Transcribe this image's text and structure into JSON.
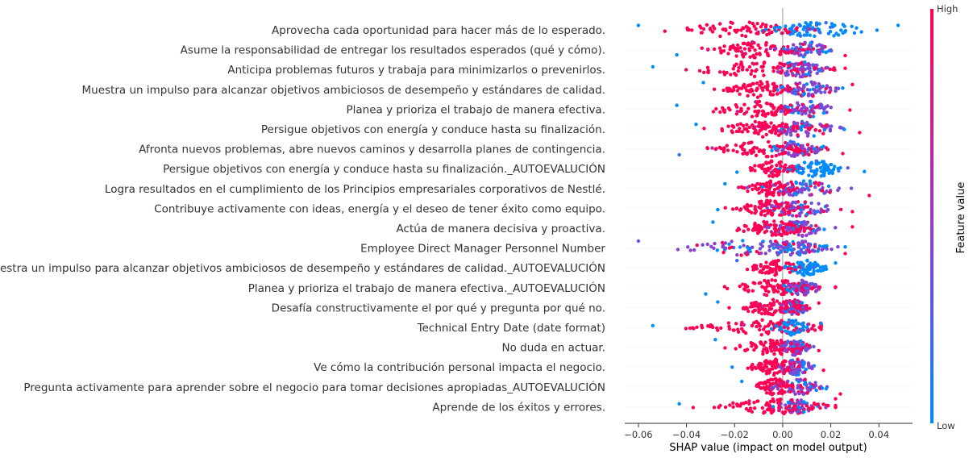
{
  "chart_data": {
    "type": "scatter",
    "subtype": "shap-beeswarm",
    "xlabel": "SHAP value (impact on model output)",
    "xlim": [
      -0.065,
      0.054
    ],
    "xticks": [
      -0.06,
      -0.04,
      -0.02,
      0.0,
      0.02,
      0.04
    ],
    "xtick_labels": [
      "−0.06",
      "−0.04",
      "−0.02",
      "0.00",
      "0.02",
      "0.04"
    ],
    "zero_line": 0.0,
    "colorbar": {
      "title": "Feature value",
      "high_label": "High",
      "low_label": "Low",
      "high_color": "#ff0052",
      "mid_color": "#9b37c8",
      "low_color": "#008bfb"
    },
    "features": [
      {
        "name": "Aprovecha cada oportunidad para hacer más de lo esperado.",
        "min": -0.06,
        "max": 0.048,
        "neg_center": -0.018,
        "pos_center": 0.015,
        "neg_color": "high",
        "pos_color": "low",
        "neg_weight": 0.55
      },
      {
        "name": "Asume la responsabilidad de entregar los resultados esperados (qué y cómo).",
        "min": -0.044,
        "max": 0.026,
        "neg_center": -0.012,
        "pos_center": 0.01,
        "neg_color": "high",
        "pos_color": "mixed",
        "neg_weight": 0.5
      },
      {
        "name": "Anticipa problemas futuros y trabaja para minimizarlos o prevenirlos.",
        "min": -0.054,
        "max": 0.026,
        "neg_center": -0.012,
        "pos_center": 0.007,
        "neg_color": "high",
        "pos_color": "mixed",
        "neg_weight": 0.5
      },
      {
        "name": "Muestra un impulso para alcanzar objetivos ambiciosos de desempeño y estándares de calidad.",
        "min": -0.033,
        "max": 0.029,
        "neg_center": -0.01,
        "pos_center": 0.01,
        "neg_color": "high",
        "pos_color": "mixed",
        "neg_weight": 0.5
      },
      {
        "name": "Planea y prioriza el trabajo de manera efectiva.",
        "min": -0.044,
        "max": 0.028,
        "neg_center": -0.01,
        "pos_center": 0.01,
        "neg_color": "high",
        "pos_color": "mixed",
        "neg_weight": 0.5
      },
      {
        "name": "Persigue objetivos con energía y conduce hasta su finalización.",
        "min": -0.036,
        "max": 0.032,
        "neg_center": -0.008,
        "pos_center": 0.009,
        "neg_color": "high",
        "pos_color": "mixed",
        "neg_weight": 0.5
      },
      {
        "name": "Afronta nuevos problemas, abre nuevos caminos y desarrolla planes de contingencia.",
        "min": -0.043,
        "max": 0.025,
        "neg_center": -0.005,
        "pos_center": 0.006,
        "neg_color": "high",
        "pos_color": "mixed",
        "neg_weight": 0.5
      },
      {
        "name": "Persigue objetivos con energía y conduce hasta su finalización._AUTOEVALUCIÓN",
        "min": -0.019,
        "max": 0.034,
        "neg_center": -0.004,
        "pos_center": 0.014,
        "neg_color": "high",
        "pos_color": "low",
        "neg_weight": 0.45
      },
      {
        "name": "Logra resultados en el cumplimiento de los Principios empresariales corporativos de Nestlé.",
        "min": -0.024,
        "max": 0.036,
        "neg_center": -0.005,
        "pos_center": 0.008,
        "neg_color": "high",
        "pos_color": "mixed",
        "neg_weight": 0.5
      },
      {
        "name": "Contribuye activamente con ideas, energía y el deseo de tener éxito como equipo.",
        "min": -0.027,
        "max": 0.029,
        "neg_center": -0.005,
        "pos_center": 0.007,
        "neg_color": "high",
        "pos_color": "mixed",
        "neg_weight": 0.5
      },
      {
        "name": "Actúa de manera decisiva y proactiva.",
        "min": -0.029,
        "max": 0.029,
        "neg_center": -0.004,
        "pos_center": 0.007,
        "neg_color": "high",
        "pos_color": "mixed",
        "neg_weight": 0.5
      },
      {
        "name": "Employee Direct Manager Personnel Number",
        "min": -0.06,
        "max": 0.026,
        "neg_center": -0.01,
        "pos_center": 0.005,
        "neg_color": "mixed",
        "pos_color": "mixed",
        "neg_weight": 0.5
      },
      {
        "name": "Muestra un impulso para alcanzar objetivos ambiciosos de desempeño y estándares de calidad._AUTOEVALUCIÓN",
        "min": -0.019,
        "max": 0.022,
        "neg_center": -0.003,
        "pos_center": 0.01,
        "neg_color": "high",
        "pos_color": "low",
        "neg_weight": 0.5
      },
      {
        "name": "Planea y prioriza el trabajo de manera efectiva._AUTOEVALUCIÓN",
        "min": -0.032,
        "max": 0.022,
        "neg_center": -0.003,
        "pos_center": 0.008,
        "neg_color": "high",
        "pos_color": "mixed",
        "neg_weight": 0.5
      },
      {
        "name": "Desafía constructivamente el por qué y pregunta por qué no.",
        "min": -0.027,
        "max": 0.015,
        "neg_center": -0.004,
        "pos_center": 0.005,
        "neg_color": "high",
        "pos_color": "mixed",
        "neg_weight": 0.55
      },
      {
        "name": "Technical Entry Date (date format)",
        "min": -0.054,
        "max": 0.016,
        "neg_center": -0.004,
        "pos_center": 0.004,
        "neg_color": "high",
        "pos_color": "low",
        "neg_weight": 0.55
      },
      {
        "name": "No duda en actuar.",
        "min": -0.028,
        "max": 0.015,
        "neg_center": -0.004,
        "pos_center": 0.005,
        "neg_color": "high",
        "pos_color": "mixed",
        "neg_weight": 0.55
      },
      {
        "name": "Ve cómo la contribución personal impacta el negocio.",
        "min": -0.021,
        "max": 0.017,
        "neg_center": -0.003,
        "pos_center": 0.006,
        "neg_color": "high",
        "pos_color": "mixed",
        "neg_weight": 0.55
      },
      {
        "name": "Pregunta activamente para aprender sobre el negocio para tomar decisiones apropiadas_AUTOEVALUCIÓN",
        "min": -0.017,
        "max": 0.024,
        "neg_center": -0.003,
        "pos_center": 0.007,
        "neg_color": "high",
        "pos_color": "mixed",
        "neg_weight": 0.5
      },
      {
        "name": "Aprende de los éxitos y errores.",
        "min": -0.043,
        "max": 0.022,
        "neg_center": -0.003,
        "pos_center": 0.006,
        "neg_color": "high",
        "pos_color": "mixed",
        "neg_weight": 0.55
      }
    ]
  }
}
